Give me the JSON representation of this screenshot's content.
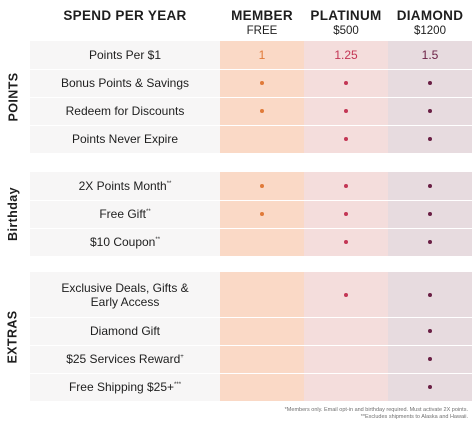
{
  "header": {
    "spend_label": "SPEND PER YEAR",
    "member_title": "MEMBER",
    "member_sub": "FREE",
    "platinum_title": "PLATINUM",
    "platinum_sub": "$500",
    "diamond_title": "DIAMOND",
    "diamond_sub": "$1200"
  },
  "sections": [
    {
      "name": "POINTS",
      "rows": [
        {
          "label": "Points Per $1",
          "sup": "",
          "member": "1",
          "platinum": "1.25",
          "diamond": "1.5"
        },
        {
          "label": "Bonus Points & Savings",
          "sup": "",
          "member": "dot",
          "platinum": "dot",
          "diamond": "dot"
        },
        {
          "label": "Redeem for Discounts",
          "sup": "",
          "member": "dot",
          "platinum": "dot",
          "diamond": "dot"
        },
        {
          "label": "Points Never Expire",
          "sup": "",
          "member": "",
          "platinum": "dot",
          "diamond": "dot"
        }
      ]
    },
    {
      "name": "Birthday",
      "rows": [
        {
          "label": "2X Points Month",
          "sup": "**",
          "member": "dot",
          "platinum": "dot",
          "diamond": "dot"
        },
        {
          "label": "Free Gift",
          "sup": "**",
          "member": "dot",
          "platinum": "dot",
          "diamond": "dot"
        },
        {
          "label": "$10 Coupon",
          "sup": "**",
          "member": "",
          "platinum": "dot",
          "diamond": "dot"
        }
      ]
    },
    {
      "name": "EXTRAS",
      "rows": [
        {
          "label": "Exclusive Deals, Gifts & Early Access",
          "sup": "",
          "member": "",
          "platinum": "dot",
          "diamond": "dot"
        },
        {
          "label": "Diamond Gift",
          "sup": "",
          "member": "",
          "platinum": "",
          "diamond": "dot"
        },
        {
          "label": "$25 Services Reward",
          "sup": "+",
          "member": "",
          "platinum": "",
          "diamond": "dot"
        },
        {
          "label": "Free Shipping $25+",
          "sup": "***",
          "member": "",
          "platinum": "",
          "diamond": "dot"
        }
      ]
    }
  ],
  "footnotes": {
    "line1": "*Members only. Email opt-in and birthday required. Must activate 2X points.",
    "line2": "**Excludes shipments to Alaska and Hawaii."
  },
  "colors": {
    "member_accent": "#e07a38",
    "platinum_accent": "#c33655",
    "diamond_accent": "#6a1f44",
    "member_bg": "#fad9c6",
    "platinum_bg": "#f4dddc",
    "diamond_bg": "#e7dbdf",
    "label_bg": "#f7f6f6"
  }
}
